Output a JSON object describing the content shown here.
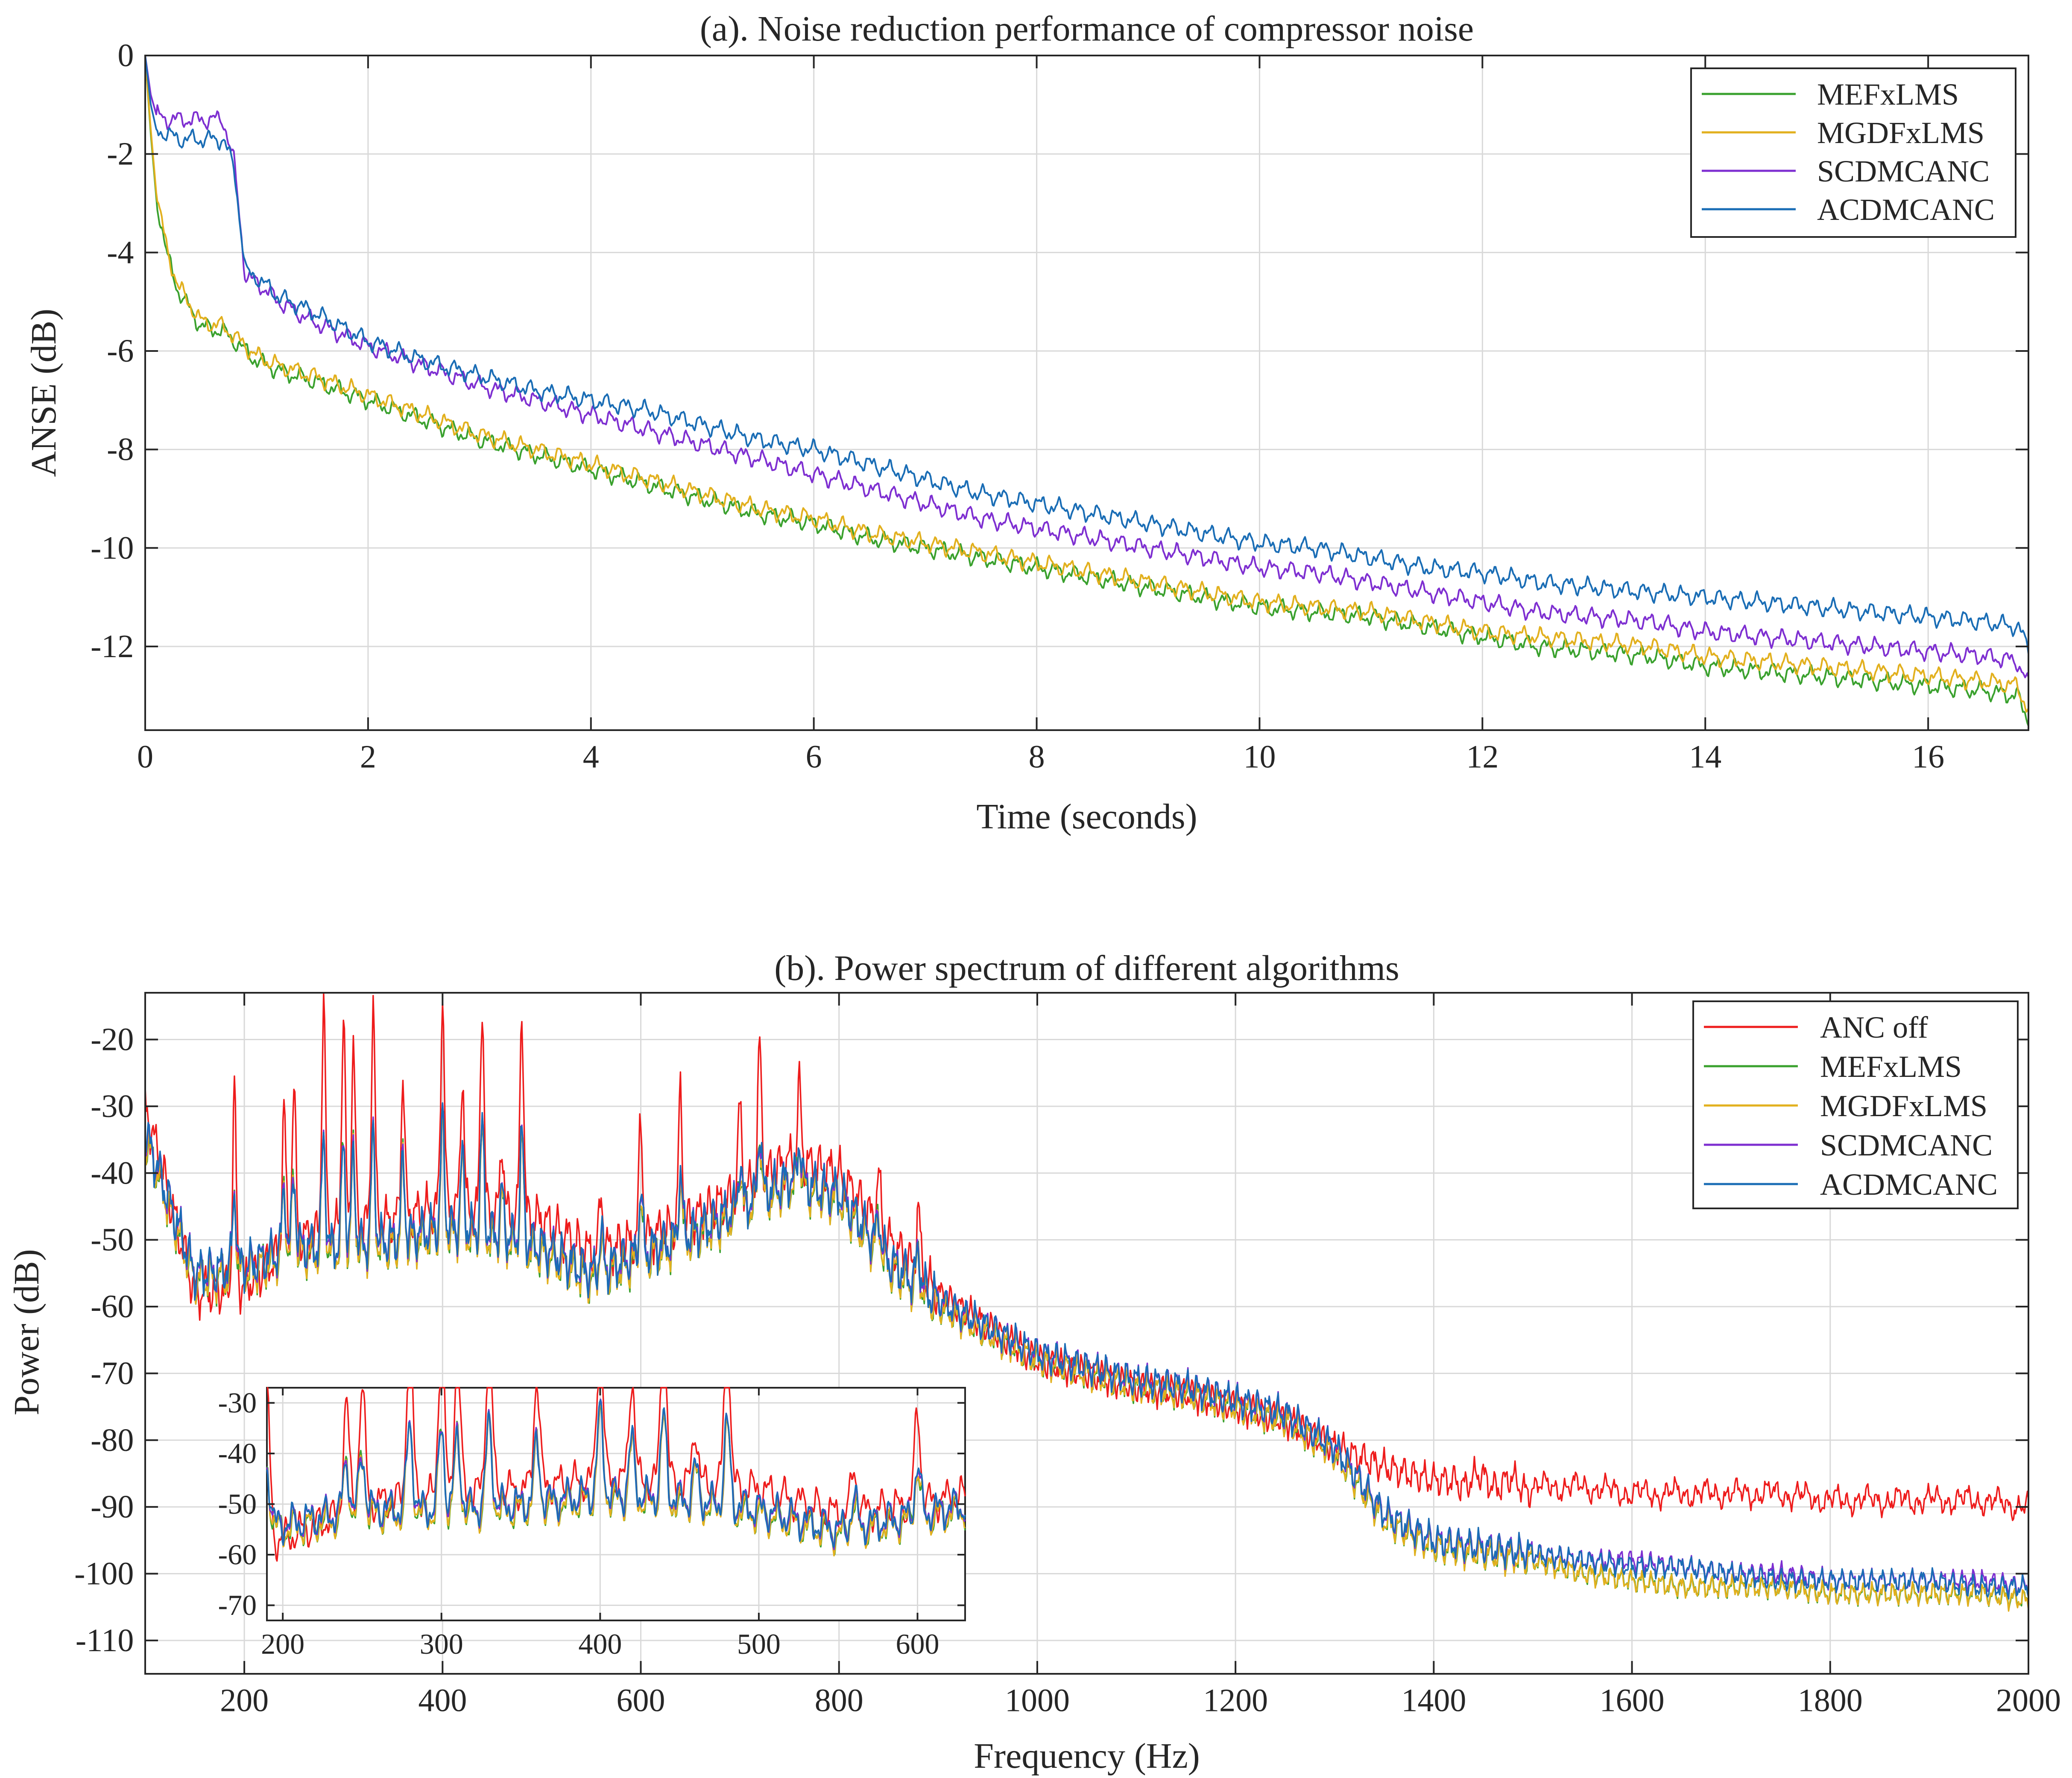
{
  "chart_data": [
    {
      "id": "a",
      "type": "line",
      "title": "(a). Noise reduction performance of compressor noise",
      "xlabel": "Time (seconds)",
      "ylabel": "ANSE (dB)",
      "xlim": [
        0,
        16.9
      ],
      "ylim": [
        -13.7,
        0
      ],
      "xticks": [
        0,
        2,
        4,
        6,
        8,
        10,
        12,
        14,
        16
      ],
      "yticks": [
        0,
        -2,
        -4,
        -6,
        -8,
        -10,
        -12
      ],
      "grid": true,
      "legend_position": "top-right",
      "x": [
        0,
        0.05,
        0.1,
        0.2,
        0.3,
        0.5,
        0.7,
        0.8,
        0.9,
        1.0,
        1.2,
        1.5,
        2.0,
        2.5,
        3.0,
        3.5,
        4.0,
        4.5,
        5.0,
        5.5,
        6.0,
        6.5,
        7.0,
        7.5,
        8.0,
        8.5,
        9.0,
        9.5,
        10.0,
        10.5,
        11.0,
        11.5,
        12.0,
        12.5,
        13.0,
        13.5,
        14.0,
        14.5,
        15.0,
        15.5,
        16.0,
        16.5,
        16.8,
        16.9
      ],
      "series": [
        {
          "name": "MEFxLMS",
          "color": "#3aa12e",
          "values": [
            0,
            -1.6,
            -2.9,
            -4.1,
            -4.8,
            -5.5,
            -5.6,
            -5.8,
            -6.0,
            -6.2,
            -6.4,
            -6.6,
            -7.0,
            -7.4,
            -7.8,
            -8.1,
            -8.4,
            -8.7,
            -9.0,
            -9.3,
            -9.5,
            -9.8,
            -10.0,
            -10.2,
            -10.4,
            -10.6,
            -10.8,
            -11.0,
            -11.2,
            -11.3,
            -11.4,
            -11.6,
            -11.8,
            -12.0,
            -12.1,
            -12.2,
            -12.4,
            -12.5,
            -12.6,
            -12.7,
            -12.8,
            -12.9,
            -13.0,
            -13.5
          ]
        },
        {
          "name": "MGDFxLMS",
          "color": "#e2b01e",
          "values": [
            0,
            -1.5,
            -2.8,
            -4.0,
            -4.7,
            -5.4,
            -5.5,
            -5.7,
            -5.9,
            -6.1,
            -6.3,
            -6.5,
            -6.9,
            -7.3,
            -7.7,
            -8.0,
            -8.3,
            -8.6,
            -8.9,
            -9.2,
            -9.4,
            -9.7,
            -9.9,
            -10.1,
            -10.3,
            -10.5,
            -10.7,
            -10.9,
            -11.1,
            -11.2,
            -11.3,
            -11.5,
            -11.7,
            -11.8,
            -11.9,
            -12.0,
            -12.2,
            -12.3,
            -12.4,
            -12.5,
            -12.6,
            -12.7,
            -12.8,
            -13.3
          ]
        },
        {
          "name": "SCDMCANC",
          "color": "#7e2fd1",
          "values": [
            0,
            -0.8,
            -1.2,
            -1.3,
            -1.3,
            -1.3,
            -1.3,
            -2.2,
            -4.5,
            -4.6,
            -5.0,
            -5.4,
            -5.9,
            -6.3,
            -6.7,
            -7.0,
            -7.3,
            -7.6,
            -7.9,
            -8.2,
            -8.5,
            -8.8,
            -9.1,
            -9.4,
            -9.6,
            -9.8,
            -10.0,
            -10.2,
            -10.4,
            -10.5,
            -10.7,
            -10.9,
            -11.1,
            -11.3,
            -11.4,
            -11.5,
            -11.7,
            -11.8,
            -11.9,
            -12.0,
            -12.1,
            -12.2,
            -12.3,
            -12.8
          ]
        },
        {
          "name": "ACDMCANC",
          "color": "#1a6db5",
          "values": [
            0,
            -1.0,
            -1.5,
            -1.6,
            -1.7,
            -1.7,
            -1.7,
            -2.3,
            -4.4,
            -4.5,
            -4.9,
            -5.2,
            -5.8,
            -6.2,
            -6.5,
            -6.8,
            -7.0,
            -7.2,
            -7.5,
            -7.8,
            -8.0,
            -8.3,
            -8.6,
            -8.9,
            -9.1,
            -9.3,
            -9.5,
            -9.7,
            -9.9,
            -10.0,
            -10.2,
            -10.4,
            -10.5,
            -10.7,
            -10.8,
            -10.9,
            -11.0,
            -11.1,
            -11.2,
            -11.3,
            -11.4,
            -11.5,
            -11.6,
            -12.0
          ]
        }
      ]
    },
    {
      "id": "b",
      "type": "line",
      "title": "(b). Power spectrum of different algorithms",
      "xlabel": "Frequency (Hz)",
      "ylabel": "Power (dB)",
      "xlim": [
        100,
        2000
      ],
      "ylim": [
        -115,
        -13
      ],
      "xticks": [
        200,
        400,
        600,
        800,
        1000,
        1200,
        1400,
        1600,
        1800,
        2000
      ],
      "yticks": [
        -20,
        -30,
        -40,
        -50,
        -60,
        -70,
        -80,
        -90,
        -100,
        -110
      ],
      "grid": true,
      "legend_position": "top-right",
      "x": [
        100,
        150,
        200,
        250,
        300,
        350,
        400,
        450,
        500,
        550,
        600,
        650,
        700,
        750,
        800,
        850,
        900,
        950,
        1000,
        1050,
        1100,
        1150,
        1200,
        1250,
        1300,
        1350,
        1400,
        1450,
        1500,
        1550,
        1600,
        1650,
        1700,
        1750,
        1800,
        1850,
        1900,
        1950,
        2000
      ],
      "series": [
        {
          "name": "ANC off",
          "color": "#ee1c1c",
          "values": [
            -30,
            -58,
            -57,
            -50,
            -48,
            -47,
            -45,
            -46,
            -47,
            -52,
            -50,
            -47,
            -43,
            -38,
            -40,
            -50,
            -58,
            -63,
            -68,
            -70,
            -72,
            -73,
            -75,
            -77,
            -81,
            -84,
            -86,
            -86,
            -87,
            -87,
            -88,
            -88,
            -88,
            -88,
            -89,
            -89,
            -89,
            -89,
            -90
          ]
        },
        {
          "name": "MEFxLMS",
          "color": "#3aa12e",
          "values": [
            -35,
            -56,
            -55,
            -52,
            -52,
            -51,
            -49,
            -50,
            -52,
            -56,
            -53,
            -50,
            -46,
            -42,
            -44,
            -54,
            -60,
            -64,
            -68,
            -70,
            -72,
            -73,
            -75,
            -77,
            -82,
            -92,
            -96,
            -97,
            -98,
            -100,
            -101,
            -102,
            -102,
            -102,
            -103,
            -103,
            -103,
            -103,
            -104
          ]
        },
        {
          "name": "MGDFxLMS",
          "color": "#e2b01e",
          "values": [
            -35,
            -56,
            -55,
            -52,
            -52,
            -51,
            -49,
            -50,
            -52,
            -56,
            -53,
            -50,
            -46,
            -42,
            -44,
            -54,
            -60,
            -64,
            -68,
            -70,
            -72,
            -73,
            -75,
            -77,
            -82,
            -92,
            -96,
            -97,
            -98,
            -100,
            -101,
            -102,
            -102,
            -102,
            -103,
            -103,
            -103,
            -103,
            -104
          ]
        },
        {
          "name": "SCDMCANC",
          "color": "#7e2fd1",
          "values": [
            -34,
            -55,
            -54,
            -51,
            -51,
            -50,
            -48,
            -49,
            -51,
            -55,
            -52,
            -49,
            -45,
            -41,
            -43,
            -53,
            -59,
            -63,
            -67,
            -69,
            -71,
            -72,
            -74,
            -76,
            -81,
            -91,
            -95,
            -96,
            -97,
            -98,
            -98,
            -99,
            -100,
            -100,
            -101,
            -101,
            -101,
            -101,
            -102
          ]
        },
        {
          "name": "ACDMCANC",
          "color": "#1a6db5",
          "values": [
            -34,
            -55,
            -54,
            -51,
            -51,
            -50,
            -48,
            -49,
            -51,
            -55,
            -52,
            -49,
            -45,
            -41,
            -43,
            -53,
            -59,
            -63,
            -67,
            -69,
            -71,
            -72,
            -74,
            -76,
            -81,
            -91,
            -95,
            -96,
            -97,
            -98,
            -99,
            -99,
            -100,
            -101,
            -101,
            -101,
            -101,
            -102,
            -102
          ]
        }
      ],
      "peaks": [
        {
          "x": 190,
          "y": -28
        },
        {
          "x": 240,
          "y": -30
        },
        {
          "x": 250,
          "y": -27
        },
        {
          "x": 280,
          "y": -14
        },
        {
          "x": 300,
          "y": -16
        },
        {
          "x": 310,
          "y": -20
        },
        {
          "x": 330,
          "y": -14
        },
        {
          "x": 360,
          "y": -25
        },
        {
          "x": 400,
          "y": -13
        },
        {
          "x": 420,
          "y": -25
        },
        {
          "x": 440,
          "y": -14
        },
        {
          "x": 460,
          "y": -35
        },
        {
          "x": 480,
          "y": -15
        },
        {
          "x": 560,
          "y": -43
        },
        {
          "x": 600,
          "y": -32
        },
        {
          "x": 640,
          "y": -28
        },
        {
          "x": 700,
          "y": -30
        },
        {
          "x": 720,
          "y": -21
        },
        {
          "x": 760,
          "y": -27
        },
        {
          "x": 840,
          "y": -40
        },
        {
          "x": 880,
          "y": -45
        }
      ],
      "inset": {
        "xlim": [
          190,
          630
        ],
        "ylim": [
          -73,
          -27
        ],
        "xticks": [
          200,
          300,
          400,
          500,
          600
        ],
        "yticks": [
          -30,
          -40,
          -50,
          -60,
          -70
        ]
      }
    }
  ]
}
